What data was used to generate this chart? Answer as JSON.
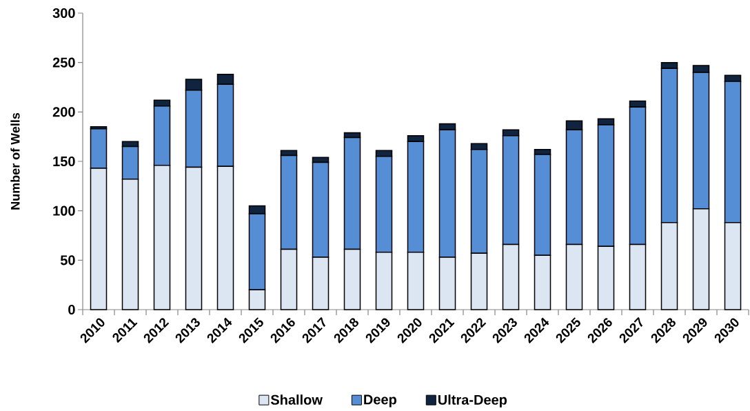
{
  "chart_data": {
    "type": "bar",
    "stacked": true,
    "ylabel": "Number of Wells",
    "categories": [
      "2010",
      "2011",
      "2012",
      "2013",
      "2014",
      "2015",
      "2016",
      "2017",
      "2018",
      "2019",
      "2020",
      "2021",
      "2022",
      "2023",
      "2024",
      "2025",
      "2026",
      "2027",
      "2028",
      "2029",
      "2030"
    ],
    "series": [
      {
        "name": "Shallow",
        "color": "#dce6f2",
        "values": [
          143,
          132,
          146,
          144,
          145,
          20,
          61,
          53,
          61,
          58,
          58,
          53,
          57,
          66,
          55,
          66,
          64,
          66,
          88,
          102,
          88
        ]
      },
      {
        "name": "Deep",
        "color": "#558ed5",
        "values": [
          40,
          33,
          60,
          78,
          83,
          77,
          95,
          96,
          113,
          97,
          112,
          129,
          105,
          110,
          102,
          116,
          123,
          139,
          156,
          138,
          143
        ]
      },
      {
        "name": "Ultra-Deep",
        "color": "#10243f",
        "values": [
          2,
          5,
          6,
          11,
          10,
          8,
          5,
          5,
          5,
          6,
          6,
          6,
          6,
          6,
          5,
          9,
          6,
          6,
          6,
          7,
          6
        ]
      }
    ],
    "ylim": [
      0,
      300
    ],
    "yticks": [
      0,
      50,
      100,
      150,
      200,
      250,
      300
    ],
    "legend": "bottom"
  }
}
